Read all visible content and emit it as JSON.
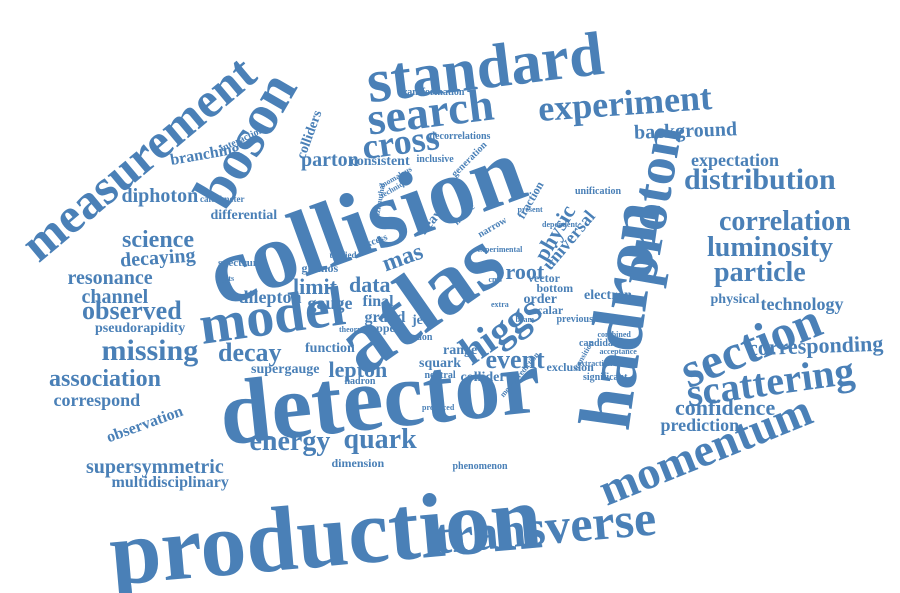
{
  "colors": {
    "word": "#4a80b7",
    "background": "#ffffff"
  },
  "words": [
    "production",
    "detector",
    "collision",
    "atlas",
    "hadron",
    "proton",
    "boson",
    "model",
    "measurement",
    "standard",
    "search",
    "momentum",
    "transverse",
    "section",
    "experiment",
    "scattering",
    "cross",
    "higgs",
    "distribution",
    "correlation",
    "luminosity",
    "particle",
    "background",
    "expectation",
    "technology",
    "corresponding",
    "confidence",
    "prediction",
    "energy",
    "quark",
    "decay",
    "missing",
    "association",
    "correspond",
    "observed",
    "channel",
    "resonance",
    "science",
    "decaying",
    "diphoton",
    "branching",
    "interaction",
    "parton",
    "consistent",
    "supersymmetric",
    "multidisciplinary",
    "observation",
    "lepton",
    "supergauge",
    "dimension",
    "phenomenon",
    "physic",
    "event",
    "root",
    "data",
    "limit",
    "dilepton",
    "gauge",
    "final",
    "grand",
    "upper",
    "jet",
    "muon",
    "electron",
    "collider",
    "squark",
    "neutral",
    "range",
    "function",
    "hadron",
    "physical",
    "universal",
    "vector",
    "bottom",
    "order",
    "scalar",
    "mas",
    "heavy",
    "inclusive",
    "unification",
    "transformation",
    "colliders",
    "decorrelations",
    "generation",
    "anomalous",
    "technique",
    "calorimeter",
    "differential",
    "pseudorapidity",
    "spectrum",
    "gluinos",
    "azimuthal",
    "unified",
    "excess",
    "present",
    "masse",
    "narrow",
    "fraction",
    "dependent",
    "previous",
    "candidate",
    "acceptance",
    "exclusion",
    "significant",
    "produced",
    "theory",
    "combined",
    "beam",
    "extra",
    "cms",
    "experimental",
    "dijets",
    "modelprediction",
    "extraction",
    "transition",
    "excited"
  ]
}
